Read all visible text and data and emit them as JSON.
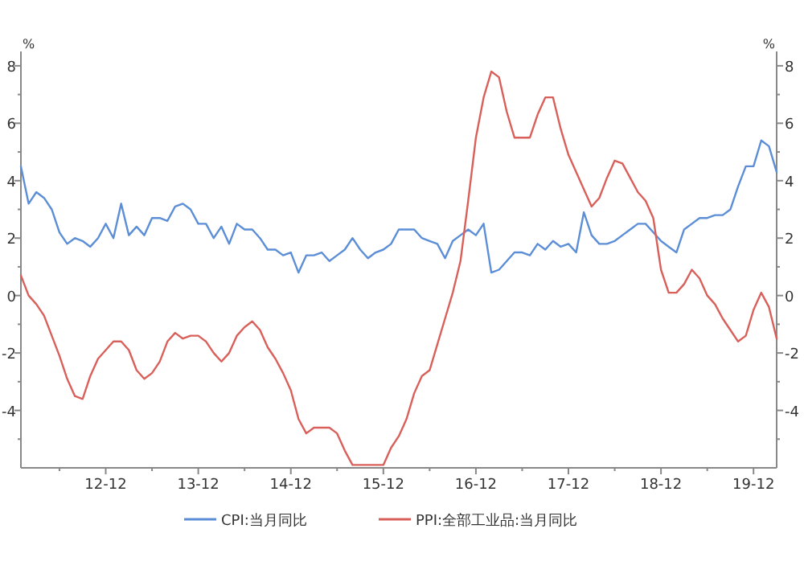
{
  "chart_data": {
    "type": "line",
    "ylabel": "%",
    "y2label": "%",
    "x": [
      "2012-01",
      "2012-02",
      "2012-03",
      "2012-04",
      "2012-05",
      "2012-06",
      "2012-07",
      "2012-08",
      "2012-09",
      "2012-10",
      "2012-11",
      "2012-12",
      "2013-01",
      "2013-02",
      "2013-03",
      "2013-04",
      "2013-05",
      "2013-06",
      "2013-07",
      "2013-08",
      "2013-09",
      "2013-10",
      "2013-11",
      "2013-12",
      "2014-01",
      "2014-02",
      "2014-03",
      "2014-04",
      "2014-05",
      "2014-06",
      "2014-07",
      "2014-08",
      "2014-09",
      "2014-10",
      "2014-11",
      "2014-12",
      "2015-01",
      "2015-02",
      "2015-03",
      "2015-04",
      "2015-05",
      "2015-06",
      "2015-07",
      "2015-08",
      "2015-09",
      "2015-10",
      "2015-11",
      "2015-12",
      "2016-01",
      "2016-02",
      "2016-03",
      "2016-04",
      "2016-05",
      "2016-06",
      "2016-07",
      "2016-08",
      "2016-09",
      "2016-10",
      "2016-11",
      "2016-12",
      "2017-01",
      "2017-02",
      "2017-03",
      "2017-04",
      "2017-05",
      "2017-06",
      "2017-07",
      "2017-08",
      "2017-09",
      "2017-10",
      "2017-11",
      "2017-12",
      "2018-01",
      "2018-02",
      "2018-03",
      "2018-04",
      "2018-05",
      "2018-06",
      "2018-07",
      "2018-08",
      "2018-09",
      "2018-10",
      "2018-11",
      "2018-12",
      "2019-01",
      "2019-02",
      "2019-03",
      "2019-04",
      "2019-05",
      "2019-06",
      "2019-07",
      "2019-08",
      "2019-09",
      "2019-10",
      "2019-11",
      "2019-12",
      "2020-01",
      "2020-02",
      "2020-03"
    ],
    "series": [
      {
        "name": "CPI:当月同比",
        "color": "#5b8ed6",
        "values": [
          4.5,
          3.2,
          3.6,
          3.4,
          3.0,
          2.2,
          1.8,
          2.0,
          1.9,
          1.7,
          2.0,
          2.5,
          2.0,
          3.2,
          2.1,
          2.4,
          2.1,
          2.7,
          2.7,
          2.6,
          3.1,
          3.2,
          3.0,
          2.5,
          2.5,
          2.0,
          2.4,
          1.8,
          2.5,
          2.3,
          2.3,
          2.0,
          1.6,
          1.6,
          1.4,
          1.5,
          0.8,
          1.4,
          1.4,
          1.5,
          1.2,
          1.4,
          1.6,
          2.0,
          1.6,
          1.3,
          1.5,
          1.6,
          1.8,
          2.3,
          2.3,
          2.3,
          2.0,
          1.9,
          1.8,
          1.3,
          1.9,
          2.1,
          2.3,
          2.1,
          2.5,
          0.8,
          0.9,
          1.2,
          1.5,
          1.5,
          1.4,
          1.8,
          1.6,
          1.9,
          1.7,
          1.8,
          1.5,
          2.9,
          2.1,
          1.8,
          1.8,
          1.9,
          2.1,
          2.3,
          2.5,
          2.5,
          2.2,
          1.9,
          1.7,
          1.5,
          2.3,
          2.5,
          2.7,
          2.7,
          2.8,
          2.8,
          3.0,
          3.8,
          4.5,
          4.5,
          5.4,
          5.2,
          4.3
        ]
      },
      {
        "name": "PPI:全部工业品:当月同比",
        "color": "#d9605a",
        "values": [
          0.7,
          0.0,
          -0.3,
          -0.7,
          -1.4,
          -2.1,
          -2.9,
          -3.5,
          -3.6,
          -2.8,
          -2.2,
          -1.9,
          -1.6,
          -1.6,
          -1.9,
          -2.6,
          -2.9,
          -2.7,
          -2.3,
          -1.6,
          -1.3,
          -1.5,
          -1.4,
          -1.4,
          -1.6,
          -2.0,
          -2.3,
          -2.0,
          -1.4,
          -1.1,
          -0.9,
          -1.2,
          -1.8,
          -2.2,
          -2.7,
          -3.3,
          -4.3,
          -4.8,
          -4.6,
          -4.6,
          -4.6,
          -4.8,
          -5.4,
          -5.9,
          -5.9,
          -5.9,
          -5.9,
          -5.9,
          -5.3,
          -4.9,
          -4.3,
          -3.4,
          -2.8,
          -2.6,
          -1.7,
          -0.8,
          0.1,
          1.2,
          3.3,
          5.5,
          6.9,
          7.8,
          7.6,
          6.4,
          5.5,
          5.5,
          5.5,
          6.3,
          6.9,
          6.9,
          5.8,
          4.9,
          4.3,
          3.7,
          3.1,
          3.4,
          4.1,
          4.7,
          4.6,
          4.1,
          3.6,
          3.3,
          2.7,
          0.9,
          0.1,
          0.1,
          0.4,
          0.9,
          0.6,
          0.0,
          -0.3,
          -0.8,
          -1.2,
          -1.6,
          -1.4,
          -0.5,
          0.1,
          -0.4,
          -1.5
        ]
      }
    ],
    "xlim": [
      "2012-01",
      "2020-03"
    ],
    "xticks": [
      {
        "value": "2012-06",
        "label": null
      },
      {
        "value": "2012-12",
        "label": "12-12"
      },
      {
        "value": "2013-06",
        "label": null
      },
      {
        "value": "2013-12",
        "label": "13-12"
      },
      {
        "value": "2014-06",
        "label": null
      },
      {
        "value": "2014-12",
        "label": "14-12"
      },
      {
        "value": "2015-06",
        "label": null
      },
      {
        "value": "2015-12",
        "label": "15-12"
      },
      {
        "value": "2016-06",
        "label": null
      },
      {
        "value": "2016-12",
        "label": "16-12"
      },
      {
        "value": "2017-06",
        "label": null
      },
      {
        "value": "2017-12",
        "label": "17-12"
      },
      {
        "value": "2018-06",
        "label": null
      },
      {
        "value": "2018-12",
        "label": "18-12"
      },
      {
        "value": "2019-06",
        "label": null
      },
      {
        "value": "2019-12",
        "label": "19-12"
      }
    ],
    "ylim": [
      -6,
      8.5
    ],
    "yticks": [
      {
        "value": -5,
        "label": null
      },
      -4,
      {
        "value": -3,
        "label": null
      },
      -2,
      {
        "value": -1,
        "label": null
      },
      0,
      {
        "value": 1,
        "label": null
      },
      2,
      {
        "value": 3,
        "label": null
      },
      4,
      {
        "value": 5,
        "label": null
      },
      6,
      {
        "value": 7,
        "label": null
      },
      8
    ],
    "y2lim": [
      -6,
      8.5
    ],
    "y2ticks": [
      {
        "value": -5,
        "label": null
      },
      -4,
      {
        "value": -3,
        "label": null
      },
      -2,
      {
        "value": -1,
        "label": null
      },
      0,
      {
        "value": 1,
        "label": null
      },
      2,
      {
        "value": 3,
        "label": null
      },
      4,
      {
        "value": 5,
        "label": null
      },
      6,
      {
        "value": 7,
        "label": null
      },
      8
    ],
    "grid": false,
    "legend": "bottom",
    "marker": "none",
    "line_style": "solid"
  }
}
